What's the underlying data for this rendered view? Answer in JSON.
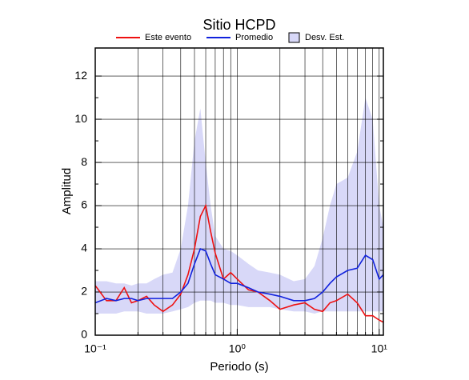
{
  "chart_data": {
    "type": "line",
    "title": "Sitio HCPD",
    "xlabel": "Periodo (s)",
    "ylabel": "Amplitud",
    "xscale": "log",
    "xlim": [
      0.1,
      10.7
    ],
    "ylim": [
      0,
      13.3
    ],
    "xticks": [
      {
        "value": 0.1,
        "label": "10⁻¹"
      },
      {
        "value": 1,
        "label": "10⁰"
      },
      {
        "value": 10,
        "label": "10¹"
      }
    ],
    "yticks": [
      0,
      2,
      4,
      6,
      8,
      10,
      12
    ],
    "grid": true,
    "legend": "top",
    "x": [
      0.1,
      0.12,
      0.14,
      0.16,
      0.18,
      0.2,
      0.23,
      0.26,
      0.3,
      0.35,
      0.4,
      0.45,
      0.5,
      0.55,
      0.6,
      0.65,
      0.7,
      0.8,
      0.9,
      1.0,
      1.2,
      1.4,
      1.7,
      2.0,
      2.5,
      3.0,
      3.5,
      4,
      4.5,
      5,
      6,
      7,
      8,
      9,
      10,
      10.7
    ],
    "series": [
      {
        "name": "Este evento",
        "color": "#ee1111",
        "values": [
          2.3,
          1.6,
          1.6,
          2.2,
          1.5,
          1.6,
          1.8,
          1.4,
          1.1,
          1.4,
          1.9,
          2.8,
          4.0,
          5.5,
          6.0,
          4.8,
          3.8,
          2.6,
          2.9,
          2.6,
          2.1,
          2.0,
          1.6,
          1.2,
          1.4,
          1.5,
          1.2,
          1.1,
          1.5,
          1.6,
          1.9,
          1.5,
          0.9,
          0.9,
          0.7,
          0.6
        ]
      },
      {
        "name": "Promedio",
        "color": "#1122dd",
        "values": [
          1.5,
          1.7,
          1.6,
          1.7,
          1.7,
          1.6,
          1.7,
          1.7,
          1.7,
          1.7,
          2.0,
          2.4,
          3.3,
          4.0,
          3.9,
          3.3,
          2.8,
          2.6,
          2.4,
          2.4,
          2.2,
          2.0,
          1.9,
          1.8,
          1.6,
          1.6,
          1.7,
          2.0,
          2.4,
          2.7,
          3.0,
          3.1,
          3.7,
          3.5,
          2.6,
          2.8
        ]
      }
    ],
    "band": {
      "name": "Desv. Est.",
      "color": "#d8d8f8",
      "upper": [
        2.5,
        2.5,
        2.4,
        2.4,
        2.3,
        2.4,
        2.4,
        2.6,
        2.8,
        2.9,
        4.0,
        6.0,
        9.0,
        10.5,
        8.0,
        6.0,
        4.6,
        4.0,
        3.9,
        3.7,
        3.3,
        3.0,
        2.9,
        2.8,
        2.5,
        2.6,
        3.2,
        4.5,
        6.0,
        7.0,
        7.3,
        8.5,
        11.0,
        10.0,
        6.0,
        5.0
      ],
      "lower": [
        1.0,
        1.0,
        1.0,
        1.1,
        1.1,
        1.1,
        1.0,
        1.0,
        1.0,
        1.1,
        1.2,
        1.3,
        1.5,
        1.6,
        1.6,
        1.6,
        1.5,
        1.5,
        1.4,
        1.4,
        1.3,
        1.3,
        1.3,
        1.2,
        1.1,
        1.1,
        1.0,
        1.1,
        1.1,
        1.1,
        1.1,
        1.1,
        1.1,
        1.1,
        1.1,
        1.1
      ]
    }
  }
}
